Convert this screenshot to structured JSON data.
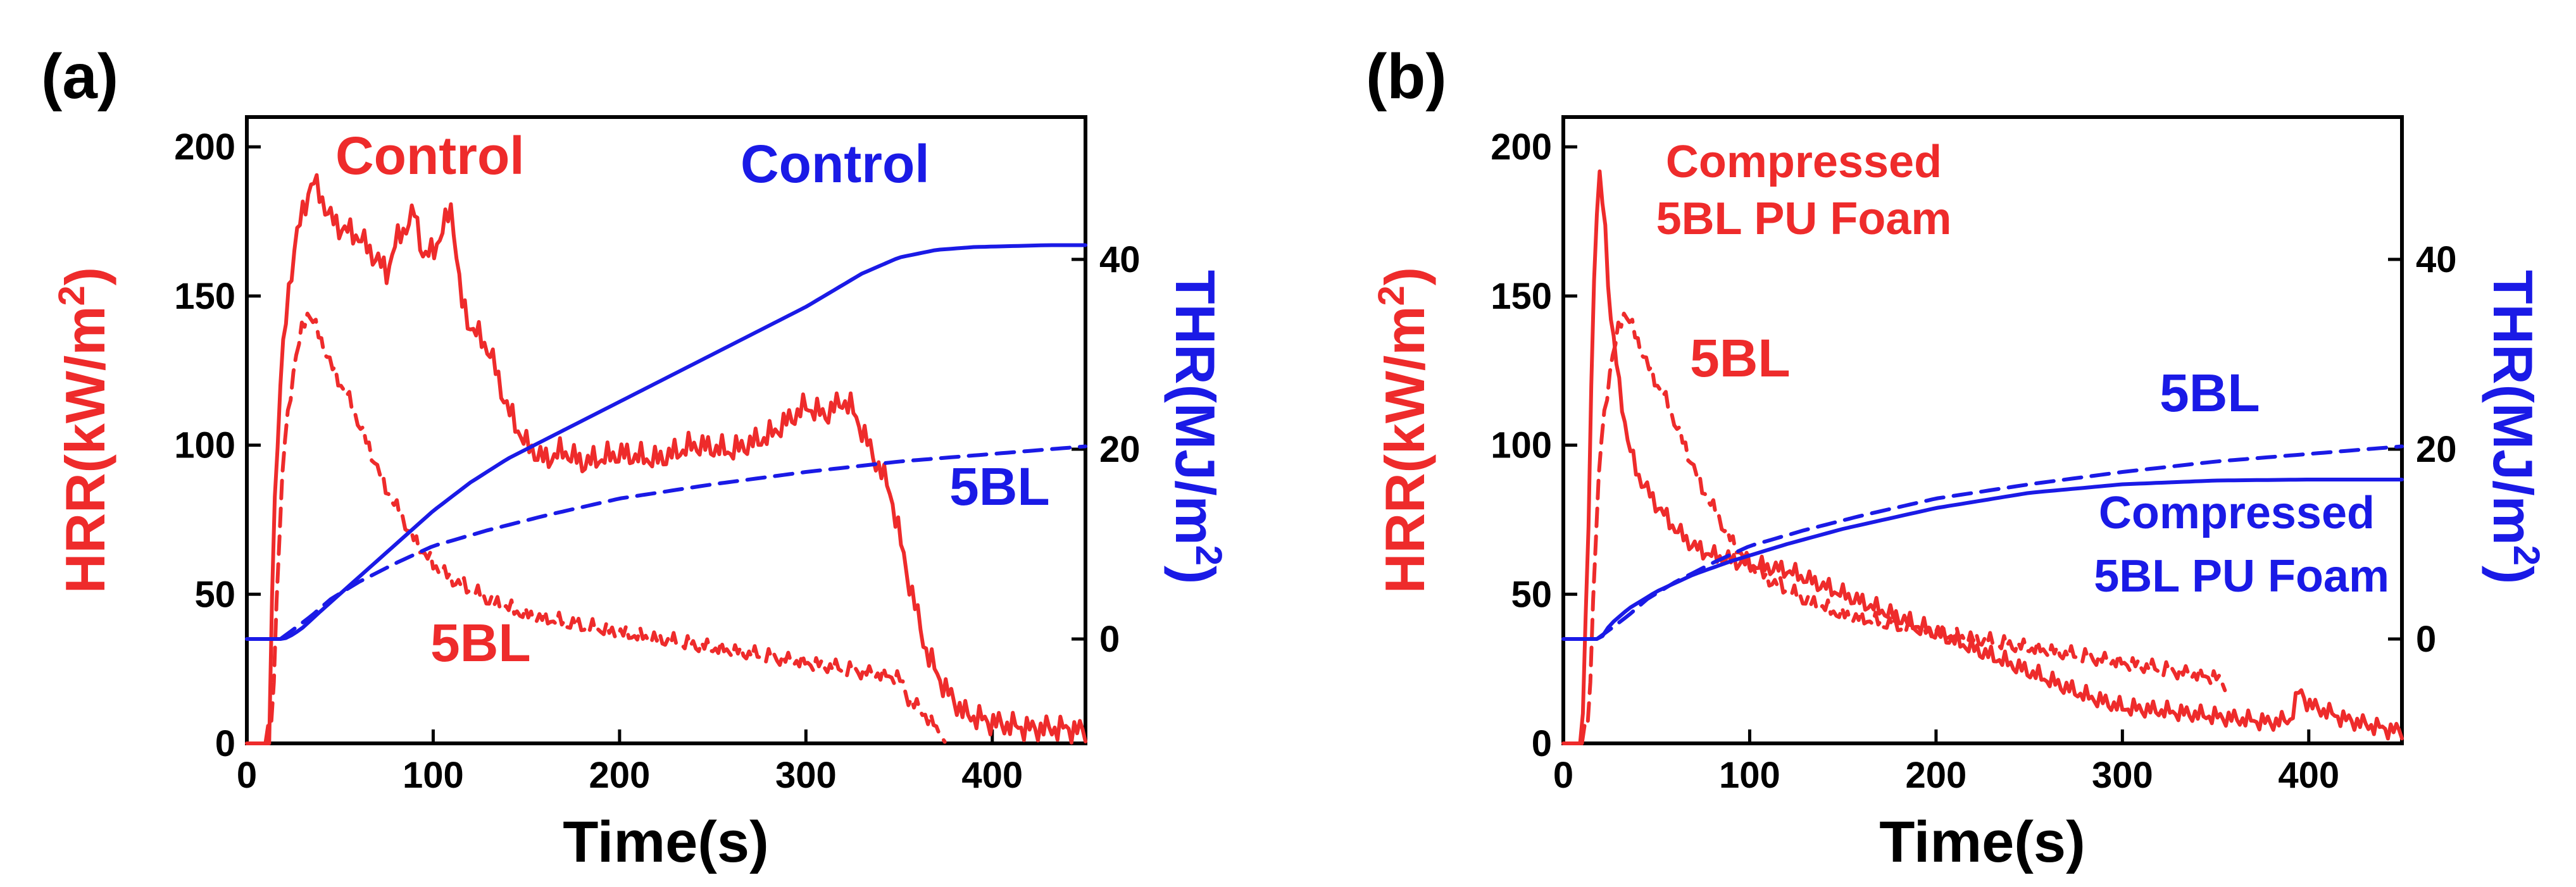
{
  "colors": {
    "hrr": "#ee2b2b",
    "thr": "#1a1ae6",
    "axis": "#000000"
  },
  "chart_data": [
    {
      "type": "line",
      "panel_label": "(a)",
      "xlabel": "Time(s)",
      "ylabel_left": {
        "base": "HRR(kW/m",
        "sup": "2",
        "close": ")"
      },
      "ylabel_right": {
        "base": "THR(MJ/m",
        "sup": "2",
        "close": ")"
      },
      "xlim": [
        0,
        450
      ],
      "ylim_left": [
        0,
        210
      ],
      "ylim_right": [
        -11,
        55
      ],
      "xticks": [
        0,
        100,
        200,
        300,
        400
      ],
      "yticks_left": [
        0,
        50,
        100,
        150,
        200
      ],
      "yticks_right": [
        0,
        20,
        40
      ],
      "series": [
        {
          "name": "Control",
          "axis": "left",
          "color": "#ee2b2b",
          "style": "solid",
          "noise": 5,
          "x": [
            0,
            12,
            14,
            18,
            22,
            26,
            30,
            35,
            40,
            45,
            50,
            60,
            70,
            75,
            80,
            85,
            90,
            95,
            100,
            105,
            110,
            115,
            120,
            130,
            140,
            150,
            160,
            170,
            180,
            200,
            220,
            240,
            260,
            280,
            290,
            300,
            310,
            320,
            325,
            335,
            345,
            355,
            365,
            375,
            385,
            400,
            420,
            440,
            450
          ],
          "y": [
            0,
            0,
            70,
            120,
            150,
            168,
            178,
            189,
            183,
            176,
            173,
            170,
            162,
            158,
            168,
            173,
            178,
            163,
            165,
            172,
            180,
            148,
            140,
            132,
            112,
            100,
            95,
            98,
            94,
            97,
            95,
            100,
            98,
            103,
            108,
            113,
            110,
            115,
            112,
            98,
            85,
            55,
            30,
            18,
            10,
            7,
            5,
            5,
            4
          ]
        },
        {
          "name": "5BL",
          "axis": "left",
          "color": "#ee2b2b",
          "style": "dashed",
          "noise": 3,
          "x": [
            10,
            14,
            16,
            20,
            25,
            30,
            33,
            38,
            45,
            55,
            65,
            75,
            90,
            100,
            110,
            130,
            150,
            200,
            250,
            300,
            340,
            350,
            355,
            360,
            365,
            370,
            375
          ],
          "y": [
            0,
            10,
            50,
            100,
            125,
            140,
            145,
            138,
            127,
            115,
            100,
            85,
            68,
            60,
            55,
            48,
            43,
            37,
            32,
            27,
            23,
            22,
            15,
            12,
            9,
            5,
            0
          ]
        },
        {
          "name": "Control",
          "axis": "right",
          "color": "#1a1ae6",
          "style": "solid",
          "noise": 0,
          "x": [
            0,
            20,
            25,
            30,
            40,
            60,
            80,
            100,
            120,
            140,
            160,
            200,
            250,
            300,
            330,
            350,
            370,
            390,
            410,
            430,
            450
          ],
          "y": [
            0,
            0,
            0.5,
            1.2,
            3,
            6.5,
            10,
            13.5,
            16.5,
            19,
            21,
            25,
            30,
            35,
            38.5,
            40.2,
            41,
            41.3,
            41.4,
            41.5,
            41.5
          ]
        },
        {
          "name": "5BL",
          "axis": "right",
          "color": "#1a1ae6",
          "style": "dashed",
          "noise": 0,
          "x": [
            18,
            25,
            35,
            45,
            60,
            80,
            100,
            130,
            160,
            200,
            250,
            300,
            350,
            400,
            450
          ],
          "y": [
            0,
            1,
            2.5,
            4.2,
            6,
            8,
            9.8,
            11.5,
            13,
            14.8,
            16.3,
            17.6,
            18.7,
            19.5,
            20.3
          ]
        }
      ],
      "annotations": [
        {
          "text": "Control",
          "color": "#ee2b2b"
        },
        {
          "text": "Control",
          "color": "#1a1ae6"
        },
        {
          "text": "5BL",
          "color": "#1a1ae6"
        },
        {
          "text": "5BL",
          "color": "#ee2b2b"
        }
      ]
    },
    {
      "type": "line",
      "panel_label": "(b)",
      "xlabel": "Time(s)",
      "ylabel_left": {
        "base": "HRR(kW/m",
        "sup": "2",
        "close": ")"
      },
      "ylabel_right": {
        "base": "THR(MJ/m",
        "sup": "2",
        "close": ")"
      },
      "xlim": [
        0,
        450
      ],
      "ylim_left": [
        0,
        210
      ],
      "ylim_right": [
        -11,
        55
      ],
      "xticks": [
        0,
        100,
        200,
        300,
        400
      ],
      "yticks_left": [
        0,
        50,
        100,
        150,
        200
      ],
      "yticks_right": [
        0,
        20,
        40
      ],
      "series": [
        {
          "name": "Compressed 5BL PU Foam",
          "axis": "left",
          "color": "#ee2b2b",
          "style": "solid",
          "noise": 3.5,
          "x": [
            0,
            10,
            13,
            16,
            19,
            22,
            25,
            30,
            35,
            40,
            50,
            60,
            70,
            80,
            100,
            120,
            150,
            200,
            250,
            280,
            300,
            320,
            350,
            380,
            390,
            395,
            400,
            420,
            440,
            450
          ],
          "y": [
            0,
            0,
            60,
            150,
            191,
            178,
            145,
            120,
            100,
            90,
            80,
            72,
            66,
            63,
            60,
            58,
            50,
            37,
            24,
            16,
            12,
            11,
            9,
            7,
            8,
            18,
            13,
            8,
            5,
            4
          ]
        },
        {
          "name": "5BL",
          "axis": "left",
          "color": "#ee2b2b",
          "style": "dashed",
          "noise": 3,
          "x": [
            10,
            14,
            16,
            20,
            25,
            30,
            33,
            38,
            45,
            55,
            65,
            75,
            90,
            100,
            110,
            130,
            150,
            200,
            250,
            300,
            340,
            350,
            355
          ],
          "y": [
            0,
            10,
            50,
            100,
            125,
            140,
            145,
            138,
            127,
            115,
            100,
            85,
            68,
            60,
            55,
            48,
            43,
            37,
            32,
            27,
            23,
            22,
            20
          ]
        },
        {
          "name": "Compressed 5BL PU Foam",
          "axis": "right",
          "color": "#1a1ae6",
          "style": "solid",
          "noise": 0,
          "x": [
            0,
            20,
            25,
            35,
            50,
            70,
            90,
            120,
            150,
            200,
            250,
            300,
            350,
            400,
            450
          ],
          "y": [
            0,
            0,
            1.5,
            3.2,
            5,
            6.8,
            8.2,
            10,
            11.6,
            13.8,
            15.4,
            16.3,
            16.7,
            16.8,
            16.8
          ]
        },
        {
          "name": "5BL",
          "axis": "right",
          "color": "#1a1ae6",
          "style": "dashed",
          "noise": 0,
          "x": [
            18,
            25,
            35,
            45,
            60,
            80,
            100,
            130,
            160,
            200,
            250,
            300,
            350,
            400,
            450
          ],
          "y": [
            0,
            1,
            2.5,
            4.2,
            6,
            8,
            9.8,
            11.5,
            13,
            14.8,
            16.3,
            17.6,
            18.7,
            19.5,
            20.3
          ]
        }
      ],
      "annotations": [
        {
          "lines": [
            "Compressed",
            "5BL PU Foam"
          ],
          "color": "#ee2b2b"
        },
        {
          "text": "5BL",
          "color": "#ee2b2b"
        },
        {
          "text": "5BL",
          "color": "#1a1ae6"
        },
        {
          "lines": [
            "Compressed",
            "5BL PU Foam"
          ],
          "color": "#1a1ae6"
        }
      ]
    }
  ]
}
